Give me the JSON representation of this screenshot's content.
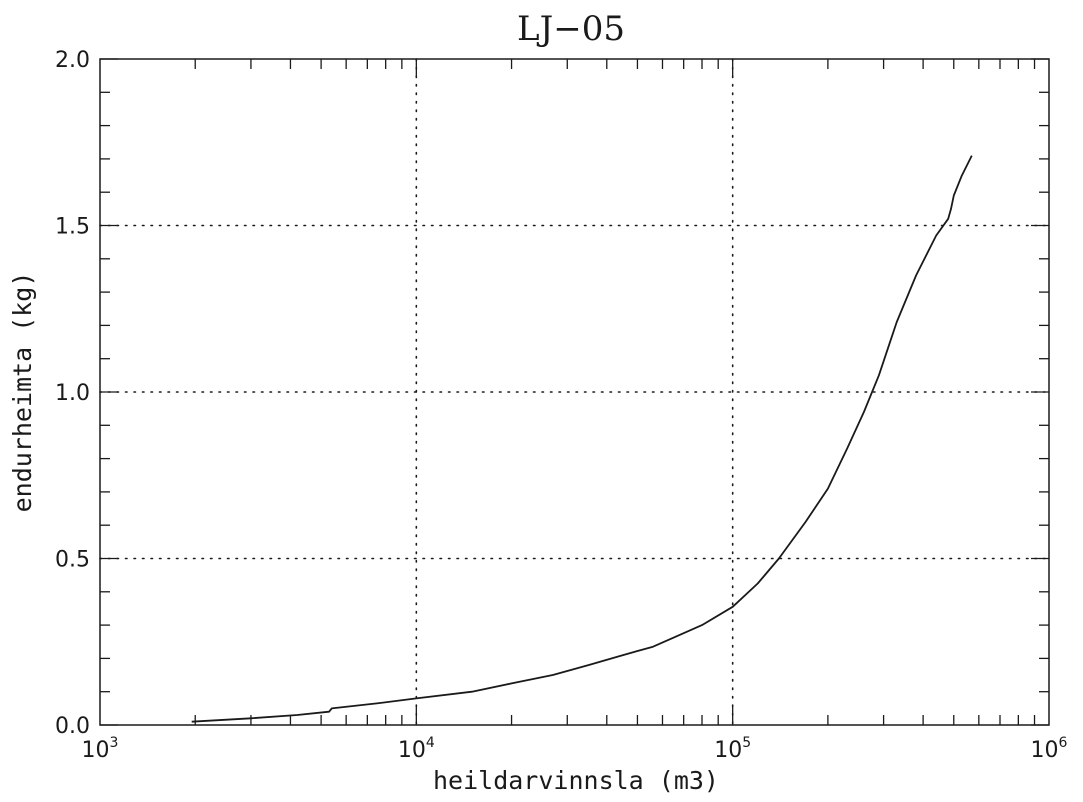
{
  "chart_data": {
    "type": "line",
    "title": "LJ−05",
    "xlabel": "heildarvinnsla (m3)",
    "ylabel": "endurheimta (kg)",
    "x_scale": "log",
    "xlim": [
      1000,
      1000000
    ],
    "ylim": [
      0,
      2.0
    ],
    "x_ticks": [
      {
        "value": 1000,
        "base": "10",
        "exp": "3"
      },
      {
        "value": 10000,
        "base": "10",
        "exp": "4"
      },
      {
        "value": 100000,
        "base": "10",
        "exp": "5"
      },
      {
        "value": 1000000,
        "base": "10",
        "exp": "6"
      }
    ],
    "y_ticks": [
      {
        "value": 0.0,
        "label": "0.0"
      },
      {
        "value": 0.5,
        "label": "0.5"
      },
      {
        "value": 1.0,
        "label": "1.0"
      },
      {
        "value": 1.5,
        "label": "1.5"
      },
      {
        "value": 2.0,
        "label": "2.0"
      }
    ],
    "grid": true,
    "grid_style": "dotted",
    "line_color": "#1a1a1a",
    "series": [
      {
        "x": [
          1950,
          3000,
          4200,
          5300,
          5400,
          7500,
          10000,
          15000,
          20000,
          27000,
          35000,
          45000,
          56000,
          80000,
          100000,
          120000,
          140000,
          170000,
          200000,
          230000,
          260000,
          290000,
          330000,
          380000,
          440000,
          480000,
          490000,
          500000,
          530000,
          570000
        ],
        "y": [
          0.01,
          0.02,
          0.03,
          0.04,
          0.05,
          0.065,
          0.08,
          0.1,
          0.125,
          0.15,
          0.18,
          0.21,
          0.235,
          0.3,
          0.355,
          0.425,
          0.5,
          0.61,
          0.71,
          0.83,
          0.94,
          1.05,
          1.21,
          1.35,
          1.47,
          1.52,
          1.55,
          1.59,
          1.65,
          1.71
        ]
      }
    ]
  }
}
